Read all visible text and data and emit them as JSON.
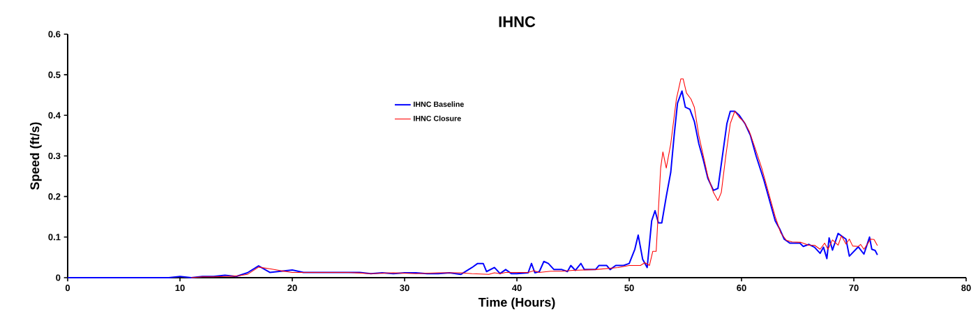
{
  "chart_data": {
    "type": "line",
    "title": "IHNC",
    "xlabel": "Time (Hours)",
    "ylabel": "Speed (ft/s)",
    "xlim": [
      0,
      80
    ],
    "xticks": [
      0,
      10,
      20,
      30,
      40,
      50,
      60,
      70,
      80
    ],
    "ylim": [
      0,
      0.6
    ],
    "yticks": [
      0,
      0.1,
      0.2,
      0.3,
      0.4,
      0.5,
      0.6
    ],
    "grid": false,
    "legend": "top",
    "marker": "none",
    "line_style": "solid",
    "series": [
      {
        "name": "IHNC Baseline",
        "color": "#0000ff",
        "x": [
          0,
          9,
          10,
          11,
          12,
          13,
          14,
          15,
          16,
          17,
          18,
          19,
          20,
          21,
          25,
          26,
          27,
          28,
          29,
          30,
          31,
          32,
          33,
          34,
          35,
          36,
          36.5,
          37,
          37.3,
          38,
          38.5,
          39,
          39.5,
          40,
          41,
          41.3,
          41.6,
          42,
          42.4,
          42.8,
          43.3,
          44,
          44.5,
          44.8,
          45.2,
          45.7,
          46,
          47,
          47.3,
          48,
          48.3,
          48.8,
          49.5,
          50,
          50.5,
          50.8,
          51.2,
          51.6,
          52,
          52.3,
          52.6,
          52.9,
          53.3,
          53.7,
          54,
          54.3,
          54.7,
          55,
          55.4,
          55.8,
          56.2,
          56.6,
          57,
          57.5,
          57.9,
          58.3,
          58.7,
          59,
          59.4,
          59.8,
          60.3,
          60.8,
          61.3,
          62,
          62.5,
          63,
          63.4,
          63.8,
          64.3,
          64.8,
          65.2,
          65.5,
          66,
          66.5,
          67,
          67.3,
          67.6,
          67.8,
          68.1,
          68.6,
          69.3,
          69.6,
          70.4,
          70.9,
          71.4,
          71.6,
          71.9,
          72.1
        ],
        "values": [
          0,
          0,
          0.003,
          0,
          0.003,
          0.003,
          0.006,
          0.003,
          0.012,
          0.029,
          0.013,
          0.016,
          0.019,
          0.013,
          0.013,
          0.013,
          0.01,
          0.012,
          0.01,
          0.012,
          0.012,
          0.01,
          0.01,
          0.012,
          0.008,
          0.025,
          0.035,
          0.035,
          0.015,
          0.025,
          0.01,
          0.02,
          0.01,
          0.01,
          0.012,
          0.035,
          0.012,
          0.015,
          0.04,
          0.035,
          0.02,
          0.02,
          0.015,
          0.03,
          0.018,
          0.035,
          0.02,
          0.02,
          0.03,
          0.03,
          0.02,
          0.03,
          0.03,
          0.035,
          0.07,
          0.105,
          0.045,
          0.025,
          0.14,
          0.165,
          0.135,
          0.135,
          0.2,
          0.26,
          0.35,
          0.43,
          0.46,
          0.42,
          0.415,
          0.385,
          0.33,
          0.29,
          0.245,
          0.215,
          0.22,
          0.3,
          0.38,
          0.41,
          0.41,
          0.4,
          0.38,
          0.35,
          0.3,
          0.24,
          0.19,
          0.14,
          0.12,
          0.095,
          0.085,
          0.085,
          0.085,
          0.077,
          0.082,
          0.075,
          0.06,
          0.075,
          0.047,
          0.098,
          0.068,
          0.109,
          0.095,
          0.053,
          0.076,
          0.058,
          0.1,
          0.07,
          0.067,
          0.056
        ]
      },
      {
        "name": "IHNC Closure",
        "color": "#ff0000",
        "x": [
          11,
          12,
          13,
          14,
          15,
          16,
          17,
          18,
          19,
          20,
          25,
          27,
          29,
          31,
          33,
          35,
          36,
          37.5,
          38,
          38.5,
          39,
          41,
          41.5,
          42,
          43,
          44,
          45,
          47,
          49,
          50,
          51,
          51.4,
          51.8,
          52.1,
          52.4,
          52.8,
          53,
          53.3,
          53.7,
          54.2,
          54.6,
          54.8,
          55.1,
          55.5,
          55.8,
          56.2,
          56.6,
          57,
          57.5,
          57.9,
          58.2,
          58.6,
          59,
          59.4,
          59.8,
          60.2,
          60.7,
          61.2,
          61.8,
          62.4,
          63,
          63.5,
          64,
          64.5,
          65.3,
          66,
          66.5,
          67,
          67.4,
          67.7,
          68.1,
          68.6,
          68.9,
          69.3,
          69.6,
          69.9,
          70.4,
          70.6,
          70.9,
          71.5,
          71.8,
          72.1
        ],
        "values": [
          0,
          0.002,
          0.002,
          0.003,
          0.004,
          0.008,
          0.026,
          0.022,
          0.017,
          0.013,
          0.013,
          0.01,
          0.012,
          0.01,
          0.012,
          0.012,
          0.01,
          0.008,
          0.012,
          0.01,
          0.013,
          0.013,
          0.017,
          0.013,
          0.016,
          0.016,
          0.018,
          0.02,
          0.025,
          0.03,
          0.03,
          0.037,
          0.03,
          0.065,
          0.065,
          0.27,
          0.31,
          0.27,
          0.33,
          0.44,
          0.49,
          0.49,
          0.455,
          0.44,
          0.42,
          0.35,
          0.3,
          0.25,
          0.21,
          0.19,
          0.21,
          0.3,
          0.38,
          0.41,
          0.395,
          0.385,
          0.36,
          0.32,
          0.27,
          0.21,
          0.15,
          0.11,
          0.092,
          0.088,
          0.087,
          0.08,
          0.08,
          0.07,
          0.085,
          0.07,
          0.093,
          0.08,
          0.103,
          0.083,
          0.095,
          0.078,
          0.077,
          0.082,
          0.07,
          0.095,
          0.094,
          0.079
        ]
      }
    ]
  }
}
